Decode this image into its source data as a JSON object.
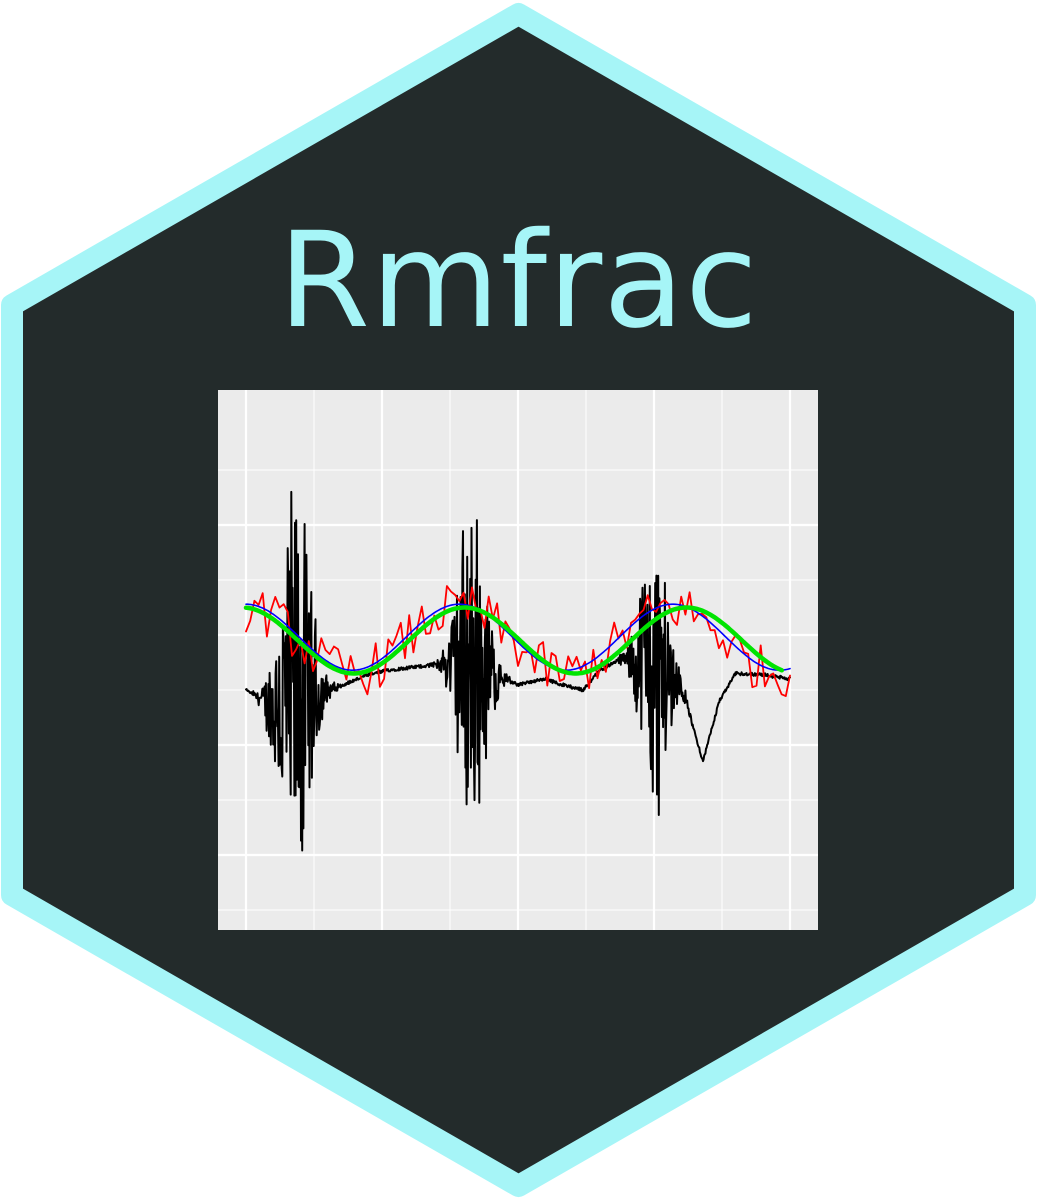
{
  "sticker": {
    "title": "Rmfrac",
    "colors": {
      "border": "#a6f5f7",
      "fill": "#232b2b",
      "title": "#a6f5f7"
    }
  },
  "chart_data": {
    "type": "line",
    "panel_background": "#ebebeb",
    "grid": true,
    "x_range": [
      0,
      1
    ],
    "y_range": [
      -2.0,
      2.5
    ],
    "series": [
      {
        "color": "#000000",
        "kind": "signal",
        "bursts": [
          {
            "center": 0.09,
            "width": 0.055,
            "amplitude": 2.2
          },
          {
            "center": 0.415,
            "width": 0.05,
            "amplitude": 1.8
          },
          {
            "center": 0.75,
            "width": 0.05,
            "amplitude": 1.5
          }
        ],
        "baseline_points": [
          [
            0.0,
            0.0
          ],
          [
            0.05,
            -0.15
          ],
          [
            0.13,
            -0.05
          ],
          [
            0.18,
            0.05
          ],
          [
            0.22,
            0.13
          ],
          [
            0.26,
            0.18
          ],
          [
            0.33,
            0.22
          ],
          [
            0.38,
            0.25
          ],
          [
            0.44,
            0.18
          ],
          [
            0.5,
            0.05
          ],
          [
            0.55,
            0.1
          ],
          [
            0.58,
            0.05
          ],
          [
            0.62,
            0.0
          ],
          [
            0.65,
            0.18
          ],
          [
            0.69,
            0.28
          ],
          [
            0.73,
            0.25
          ],
          [
            0.8,
            0.05
          ],
          [
            0.84,
            -0.65
          ],
          [
            0.87,
            -0.1
          ],
          [
            0.9,
            0.15
          ],
          [
            0.95,
            0.14
          ],
          [
            1.0,
            0.1
          ]
        ]
      },
      {
        "color": "#ff0000",
        "kind": "noisy-sine",
        "offset": 0.45,
        "amplitude": 0.3,
        "noise": 0.22,
        "periods": 2.55,
        "phase": 0.0
      },
      {
        "color": "#0000ff",
        "kind": "sine",
        "offset": 0.48,
        "amplitude": 0.3,
        "periods": 2.55,
        "phase": 0.0
      },
      {
        "color": "#00e400",
        "kind": "sine",
        "offset": 0.45,
        "amplitude": 0.3,
        "periods": 2.45,
        "phase": 0.1
      }
    ]
  }
}
